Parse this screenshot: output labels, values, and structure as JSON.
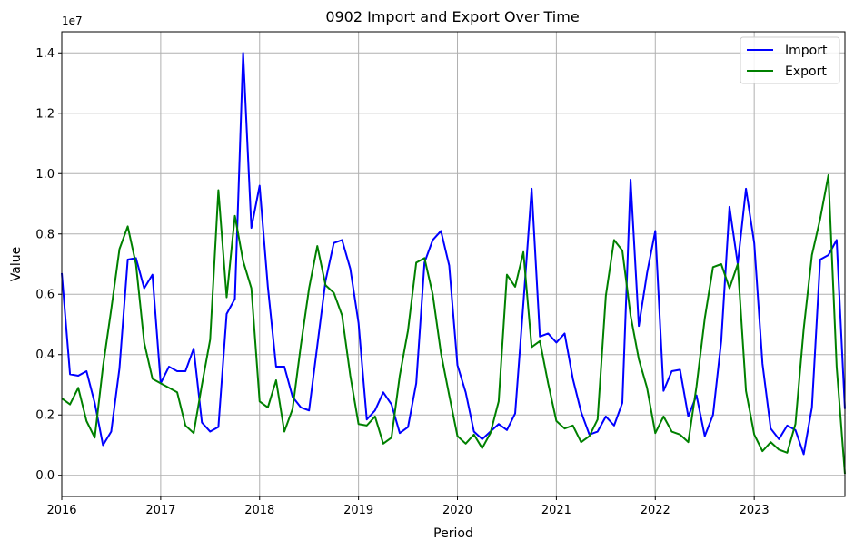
{
  "chart_data": {
    "type": "line",
    "title": "0902 Import and Export Over Time",
    "xlabel": "Period",
    "ylabel": "Value",
    "y_offset_label": "1e7",
    "x_start": "2016-01",
    "x_end": "2023-12",
    "xlim": [
      2016.0,
      2023.917
    ],
    "ylim": [
      -700000,
      14700000
    ],
    "x_ticks": [
      {
        "value": 2016,
        "label": "2016"
      },
      {
        "value": 2017,
        "label": "2017"
      },
      {
        "value": 2018,
        "label": "2018"
      },
      {
        "value": 2019,
        "label": "2019"
      },
      {
        "value": 2020,
        "label": "2020"
      },
      {
        "value": 2021,
        "label": "2021"
      },
      {
        "value": 2022,
        "label": "2022"
      },
      {
        "value": 2023,
        "label": "2023"
      }
    ],
    "y_ticks": [
      {
        "value": 0,
        "label": "0.0"
      },
      {
        "value": 2000000,
        "label": "0.2"
      },
      {
        "value": 4000000,
        "label": "0.4"
      },
      {
        "value": 6000000,
        "label": "0.6"
      },
      {
        "value": 8000000,
        "label": "0.8"
      },
      {
        "value": 10000000,
        "label": "1.0"
      },
      {
        "value": 12000000,
        "label": "1.2"
      },
      {
        "value": 14000000,
        "label": "1.4"
      }
    ],
    "grid": true,
    "legend_position": "top-right",
    "series": [
      {
        "name": "Import",
        "color": "#0000ff",
        "values": [
          6700000,
          3350000,
          3300000,
          3450000,
          2400000,
          1000000,
          1450000,
          3550000,
          7150000,
          7200000,
          6200000,
          6650000,
          3050000,
          3600000,
          3450000,
          3450000,
          4200000,
          1750000,
          1450000,
          1600000,
          5350000,
          5850000,
          14000000,
          8200000,
          9600000,
          6250000,
          3600000,
          3600000,
          2600000,
          2250000,
          2150000,
          4300000,
          6450000,
          7700000,
          7800000,
          6850000,
          5050000,
          1850000,
          2150000,
          2750000,
          2350000,
          1400000,
          1600000,
          3050000,
          7050000,
          7800000,
          8100000,
          6950000,
          3650000,
          2750000,
          1450000,
          1200000,
          1450000,
          1700000,
          1500000,
          2050000,
          5700000,
          9500000,
          4600000,
          4700000,
          4400000,
          4700000,
          3200000,
          2100000,
          1350000,
          1450000,
          1950000,
          1650000,
          2400000,
          9800000,
          4950000,
          6700000,
          8100000,
          2800000,
          3450000,
          3500000,
          1950000,
          2650000,
          1300000,
          2000000,
          4450000,
          8900000,
          7000000,
          9500000,
          7700000,
          3700000,
          1550000,
          1200000,
          1650000,
          1500000,
          700000,
          2250000,
          7150000,
          7300000,
          7800000,
          2200000
        ]
      },
      {
        "name": "Export",
        "color": "#008000",
        "values": [
          2550000,
          2350000,
          2900000,
          1800000,
          1250000,
          3600000,
          5500000,
          7500000,
          8250000,
          7000000,
          4400000,
          3200000,
          3050000,
          2900000,
          2750000,
          1650000,
          1400000,
          3000000,
          4500000,
          9450000,
          5900000,
          8600000,
          7100000,
          6200000,
          2450000,
          2250000,
          3150000,
          1450000,
          2200000,
          4300000,
          6200000,
          7600000,
          6300000,
          6050000,
          5300000,
          3300000,
          1700000,
          1650000,
          1950000,
          1050000,
          1250000,
          3300000,
          4800000,
          7050000,
          7200000,
          6000000,
          4050000,
          2650000,
          1300000,
          1050000,
          1350000,
          900000,
          1400000,
          2450000,
          6650000,
          6250000,
          7400000,
          4250000,
          4450000,
          3050000,
          1800000,
          1550000,
          1650000,
          1100000,
          1300000,
          1850000,
          5950000,
          7800000,
          7450000,
          5300000,
          3850000,
          2900000,
          1400000,
          1950000,
          1450000,
          1350000,
          1100000,
          2950000,
          5200000,
          6900000,
          7000000,
          6200000,
          7000000,
          2800000,
          1350000,
          800000,
          1100000,
          850000,
          750000,
          1700000,
          4850000,
          7300000,
          8500000,
          9950000,
          3600000,
          50000
        ]
      }
    ]
  }
}
